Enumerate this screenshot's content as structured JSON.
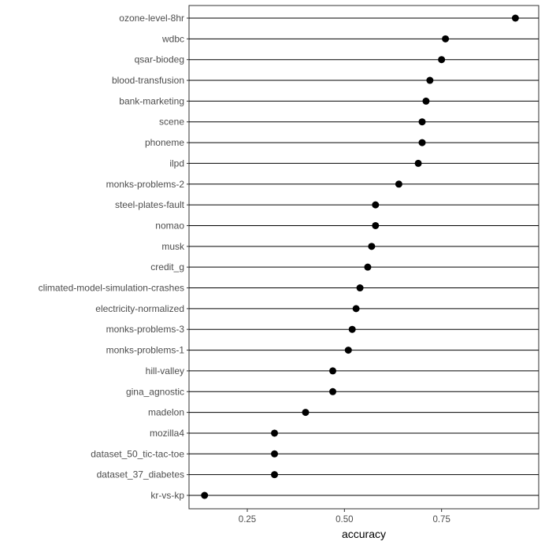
{
  "chart_data": {
    "type": "scatter",
    "title": "",
    "xlabel": "accuracy",
    "ylabel": "",
    "xlim": [
      0.1,
      1.0
    ],
    "xticks": [
      0.25,
      0.5,
      0.75
    ],
    "xtick_labels": [
      "0.25",
      "0.50",
      "0.75"
    ],
    "grid": "horizontal lines per category",
    "categories": [
      "ozone-level-8hr",
      "wdbc",
      "qsar-biodeg",
      "blood-transfusion",
      "bank-marketing",
      "scene",
      "phoneme",
      "ilpd",
      "monks-problems-2",
      "steel-plates-fault",
      "nomao",
      "musk",
      "credit_g",
      "climated-model-simulation-crashes",
      "electricity-normalized",
      "monks-problems-3",
      "monks-problems-1",
      "hill-valley",
      "gina_agnostic",
      "madelon",
      "mozilla4",
      "dataset_50_tic-tac-toe",
      "dataset_37_diabetes",
      "kr-vs-kp"
    ],
    "values": [
      0.94,
      0.76,
      0.75,
      0.72,
      0.71,
      0.7,
      0.7,
      0.69,
      0.64,
      0.58,
      0.58,
      0.57,
      0.56,
      0.54,
      0.53,
      0.52,
      0.51,
      0.47,
      0.47,
      0.4,
      0.32,
      0.32,
      0.32,
      0.14
    ]
  }
}
